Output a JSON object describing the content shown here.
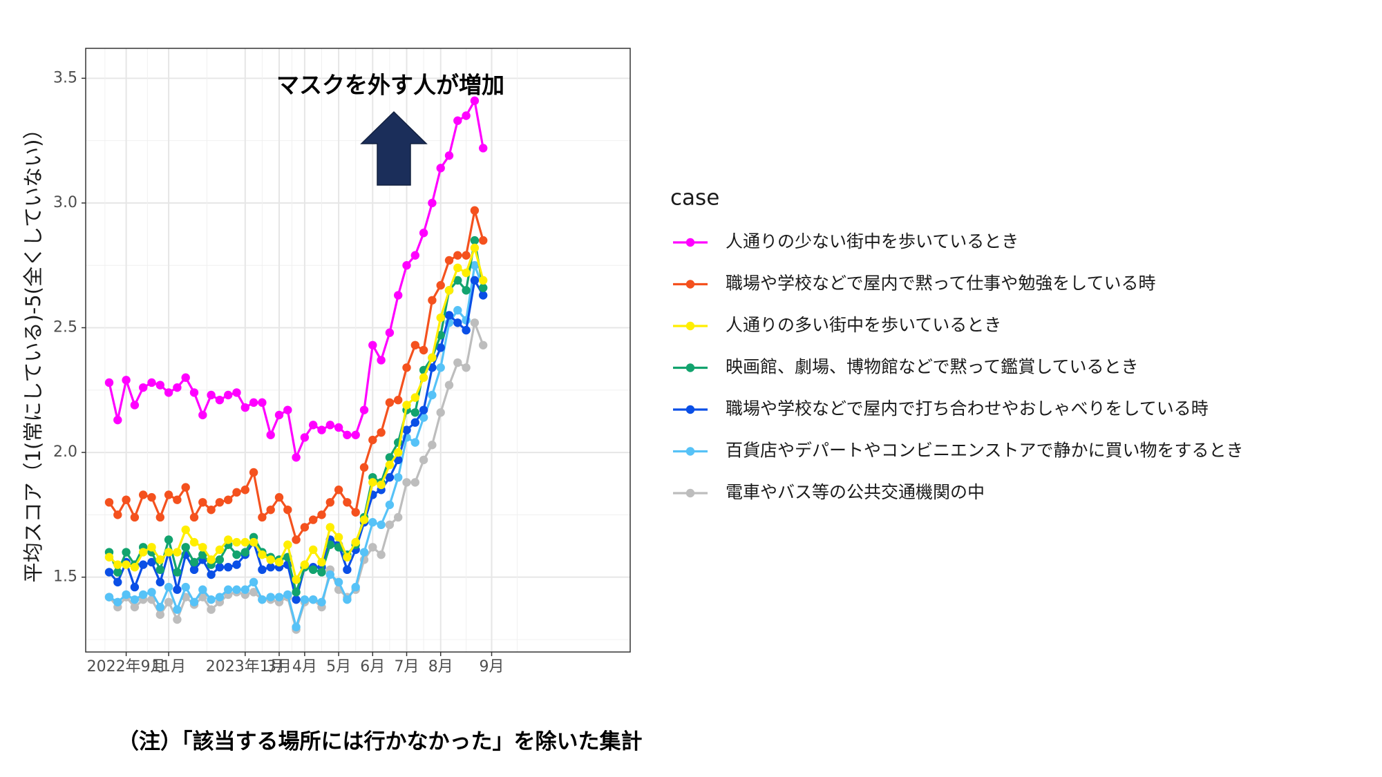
{
  "chart_data": {
    "type": "line",
    "title": "",
    "xlabel": "",
    "ylabel": "平均スコア（1(常にしている)-5(全くしていない)）",
    "ylim": [
      1.2,
      3.62
    ],
    "y_ticks": [
      1.5,
      2.0,
      2.5,
      3.0,
      3.5
    ],
    "x_ticks": [
      "2022年9月",
      "11月",
      "2023年1月",
      "3月",
      "4月",
      "5月",
      "6月",
      "7月",
      "8月",
      "9月"
    ],
    "x_tick_index": [
      2,
      7,
      16,
      20,
      23,
      27,
      31,
      35,
      39,
      45
    ],
    "grid": true,
    "legend": {
      "title": "case",
      "placement": "right"
    },
    "annotation": "マスクを外す人が増加",
    "annotation_arrow": "up",
    "arrow_color": "#1b2e5a",
    "series": [
      {
        "name": "人通りの少ない街中を歩いているとき",
        "color": "#ff00ff",
        "values": [
          2.28,
          2.13,
          2.29,
          2.19,
          2.26,
          2.28,
          2.27,
          2.24,
          2.26,
          2.3,
          2.24,
          2.15,
          2.23,
          2.21,
          2.23,
          2.24,
          2.18,
          2.2,
          2.2,
          2.07,
          2.15,
          2.17,
          1.98,
          2.06,
          2.11,
          2.09,
          2.11,
          2.1,
          2.07,
          2.07,
          2.17,
          2.43,
          2.37,
          2.48,
          2.63,
          2.75,
          2.79,
          2.88,
          3.0,
          3.14,
          3.19,
          3.33,
          3.35,
          3.41,
          3.22
        ]
      },
      {
        "name": "職場や学校などで屋内で黙って仕事や勉強をしている時",
        "color": "#f4511e",
        "values": [
          1.8,
          1.75,
          1.81,
          1.74,
          1.83,
          1.82,
          1.74,
          1.83,
          1.81,
          1.86,
          1.74,
          1.8,
          1.77,
          1.8,
          1.81,
          1.84,
          1.85,
          1.92,
          1.74,
          1.77,
          1.82,
          1.77,
          1.65,
          1.7,
          1.73,
          1.75,
          1.8,
          1.85,
          1.8,
          1.76,
          1.94,
          2.05,
          2.08,
          2.2,
          2.21,
          2.34,
          2.43,
          2.41,
          2.61,
          2.67,
          2.77,
          2.79,
          2.79,
          2.97,
          2.85
        ]
      },
      {
        "name": "人通りの多い街中を歩いているとき",
        "color": "#ffee00",
        "values": [
          1.58,
          1.55,
          1.55,
          1.54,
          1.6,
          1.62,
          1.57,
          1.6,
          1.6,
          1.69,
          1.64,
          1.62,
          1.57,
          1.61,
          1.65,
          1.64,
          1.64,
          1.64,
          1.59,
          1.57,
          1.56,
          1.63,
          1.49,
          1.55,
          1.61,
          1.56,
          1.7,
          1.66,
          1.58,
          1.64,
          1.73,
          1.88,
          1.87,
          1.95,
          2.0,
          2.19,
          2.22,
          2.3,
          2.38,
          2.54,
          2.65,
          2.74,
          2.72,
          2.82,
          2.69
        ]
      },
      {
        "name": "映画館、劇場、博物館などで黙って鑑賞しているとき",
        "color": "#12a36e",
        "values": [
          1.6,
          1.52,
          1.6,
          1.55,
          1.62,
          1.6,
          1.53,
          1.65,
          1.52,
          1.62,
          1.56,
          1.59,
          1.55,
          1.57,
          1.63,
          1.59,
          1.6,
          1.66,
          1.6,
          1.58,
          1.57,
          1.58,
          1.44,
          1.54,
          1.53,
          1.52,
          1.63,
          1.62,
          1.59,
          1.63,
          1.74,
          1.9,
          1.88,
          1.98,
          2.04,
          2.17,
          2.16,
          2.33,
          2.38,
          2.47,
          2.65,
          2.69,
          2.65,
          2.85,
          2.66
        ]
      },
      {
        "name": "職場や学校などで屋内で打ち合わせやおしゃべりをしている時",
        "color": "#0a4fe6",
        "values": [
          1.52,
          1.48,
          1.56,
          1.46,
          1.55,
          1.56,
          1.48,
          1.6,
          1.45,
          1.59,
          1.53,
          1.57,
          1.51,
          1.54,
          1.54,
          1.55,
          1.59,
          1.64,
          1.53,
          1.54,
          1.54,
          1.55,
          1.41,
          1.54,
          1.54,
          1.54,
          1.65,
          1.63,
          1.53,
          1.61,
          1.72,
          1.83,
          1.85,
          1.9,
          1.97,
          2.09,
          2.12,
          2.17,
          2.34,
          2.42,
          2.55,
          2.52,
          2.49,
          2.69,
          2.63
        ]
      },
      {
        "name": "百貨店やデパートやコンビニエンストアで静かに買い物をするとき",
        "color": "#56c2f7",
        "values": [
          1.42,
          1.4,
          1.43,
          1.41,
          1.43,
          1.44,
          1.38,
          1.46,
          1.37,
          1.46,
          1.4,
          1.45,
          1.41,
          1.42,
          1.45,
          1.45,
          1.45,
          1.48,
          1.41,
          1.42,
          1.42,
          1.43,
          1.3,
          1.41,
          1.41,
          1.4,
          1.51,
          1.48,
          1.41,
          1.46,
          1.6,
          1.72,
          1.71,
          1.79,
          1.9,
          2.06,
          2.04,
          2.14,
          2.23,
          2.34,
          2.52,
          2.57,
          2.53,
          2.75,
          2.66
        ]
      },
      {
        "name": "電車やバス等の公共交通機関の中",
        "color": "#bdbdbd",
        "values": [
          1.42,
          1.38,
          1.42,
          1.38,
          1.41,
          1.41,
          1.35,
          1.4,
          1.33,
          1.42,
          1.39,
          1.42,
          1.37,
          1.4,
          1.43,
          1.44,
          1.43,
          1.44,
          1.41,
          1.41,
          1.4,
          1.42,
          1.29,
          1.4,
          1.41,
          1.38,
          1.53,
          1.45,
          1.42,
          1.45,
          1.57,
          1.62,
          1.59,
          1.71,
          1.74,
          1.88,
          1.88,
          1.97,
          2.03,
          2.16,
          2.27,
          2.36,
          2.34,
          2.52,
          2.43
        ]
      }
    ]
  },
  "note": "（注）「該当する場所には行かなかった」を除いた集計"
}
